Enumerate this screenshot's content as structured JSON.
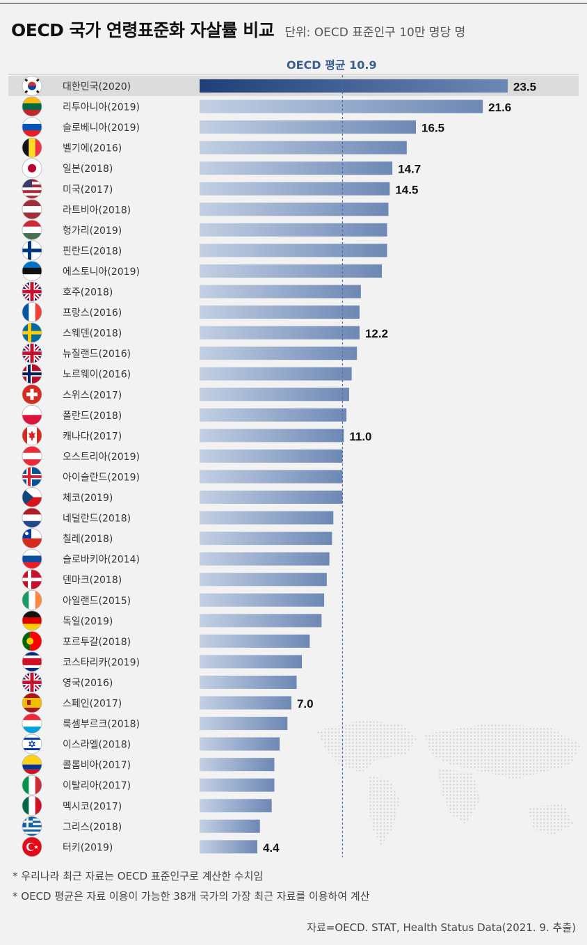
{
  "title": "OECD 국가 연령표준화 자살률 비교",
  "unit": "단위: OECD 표준인구 10만 명당 명",
  "average_label": "OECD 평균 10.9",
  "notes": [
    "* 우리나라 최근 자료는 OECD 표준인구로 계산한 수치임",
    "* OECD 평균은 자료 이용이 가능한 38개 국가의 가장 최근 자료를 이용하여 계산"
  ],
  "source": "자료=OECD. STAT, Health Status Data(2021. 9. 추출)",
  "colors": {
    "bar_light": "#c3d0e4",
    "bar_dark": "#6d88b5",
    "highlight_dark": "#1e3f78",
    "highlight_row": "#dcdcdc",
    "average_line": "#4a6fa5"
  },
  "chart_data": {
    "type": "bar",
    "orientation": "horizontal",
    "average": 10.9,
    "xlim": [
      0,
      23.5
    ],
    "grid": false,
    "categories": [
      "대한민국(2020)",
      "리투아니아(2019)",
      "슬로베니아(2019)",
      "벨기에(2016)",
      "일본(2018)",
      "미국(2017)",
      "라트비아(2018)",
      "헝가리(2019)",
      "핀란드(2018)",
      "에스토니아(2019)",
      "호주(2018)",
      "프랑스(2016)",
      "스웨덴(2018)",
      "뉴질랜드(2016)",
      "노르웨이(2016)",
      "스위스(2017)",
      "폴란드(2018)",
      "캐나다(2017)",
      "오스트리아(2019)",
      "아이슬란드(2019)",
      "체코(2019)",
      "네덜란드(2018)",
      "칠레(2018)",
      "슬로바키아(2014)",
      "덴마크(2018)",
      "아일랜드(2015)",
      "독일(2019)",
      "포르투갈(2018)",
      "코스타리카(2019)",
      "영국(2016)",
      "스페인(2017)",
      "룩셈부르크(2018)",
      "이스라엘(2018)",
      "콜롬비아(2017)",
      "이탈리아(2017)",
      "멕시코(2017)",
      "그리스(2018)",
      "터키(2019)"
    ],
    "values": [
      23.5,
      21.6,
      16.5,
      15.8,
      14.7,
      14.5,
      14.4,
      14.3,
      14.3,
      13.9,
      12.3,
      12.2,
      12.2,
      12.0,
      11.6,
      11.4,
      11.2,
      11.0,
      10.9,
      10.9,
      10.9,
      10.2,
      10.1,
      9.9,
      9.7,
      9.5,
      9.3,
      8.4,
      7.8,
      7.4,
      7.0,
      6.7,
      6.1,
      5.7,
      5.7,
      5.5,
      4.6,
      4.4
    ],
    "value_labels": [
      "23.5",
      "21.6",
      "16.5",
      "",
      "14.7",
      "14.5",
      "",
      "",
      "",
      "",
      "",
      "",
      "12.2",
      "",
      "",
      "",
      "",
      "11.0",
      "",
      "",
      "",
      "",
      "",
      "",
      "",
      "",
      "",
      "",
      "",
      "",
      "7.0",
      "",
      "",
      "",
      "",
      "",
      "",
      "4.4"
    ],
    "highlight_index": 0,
    "flags": [
      {
        "name": "south-korea-flag-icon",
        "type": "korea"
      },
      {
        "name": "lithuania-flag-icon",
        "type": "h3",
        "colors": [
          "#fdb913",
          "#006a44",
          "#c1272d"
        ]
      },
      {
        "name": "slovenia-flag-icon",
        "type": "h3",
        "colors": [
          "#ffffff",
          "#0057b8",
          "#ed1c24"
        ]
      },
      {
        "name": "belgium-flag-icon",
        "type": "v3",
        "colors": [
          "#111111",
          "#fdda24",
          "#ef3340"
        ]
      },
      {
        "name": "japan-flag-icon",
        "type": "japan"
      },
      {
        "name": "usa-flag-icon",
        "type": "usa"
      },
      {
        "name": "latvia-flag-icon",
        "type": "h3",
        "colors": [
          "#9e3039",
          "#ffffff",
          "#9e3039"
        ]
      },
      {
        "name": "hungary-flag-icon",
        "type": "h3",
        "colors": [
          "#ce2939",
          "#ffffff",
          "#477050"
        ]
      },
      {
        "name": "finland-flag-icon",
        "type": "nordic",
        "colors": [
          "#ffffff",
          "#003580"
        ]
      },
      {
        "name": "estonia-flag-icon",
        "type": "h3",
        "colors": [
          "#0072ce",
          "#111111",
          "#ffffff"
        ]
      },
      {
        "name": "australia-flag-icon",
        "type": "uk",
        "colors": [
          "#012169",
          "#ffffff",
          "#c8102e"
        ]
      },
      {
        "name": "france-flag-icon",
        "type": "v3",
        "colors": [
          "#0055a4",
          "#ffffff",
          "#ef4135"
        ]
      },
      {
        "name": "sweden-flag-icon",
        "type": "nordic",
        "colors": [
          "#006aa7",
          "#fecc00"
        ]
      },
      {
        "name": "new-zealand-flag-icon",
        "type": "uk",
        "colors": [
          "#012169",
          "#ffffff",
          "#c8102e"
        ]
      },
      {
        "name": "norway-flag-icon",
        "type": "nordic2",
        "colors": [
          "#ba0c2f",
          "#ffffff",
          "#00205b"
        ]
      },
      {
        "name": "switzerland-flag-icon",
        "type": "swiss"
      },
      {
        "name": "poland-flag-icon",
        "type": "h2",
        "colors": [
          "#ffffff",
          "#dc143c"
        ]
      },
      {
        "name": "canada-flag-icon",
        "type": "canada"
      },
      {
        "name": "austria-flag-icon",
        "type": "h3",
        "colors": [
          "#ed2939",
          "#ffffff",
          "#ed2939"
        ]
      },
      {
        "name": "iceland-flag-icon",
        "type": "nordic2",
        "colors": [
          "#02529c",
          "#ffffff",
          "#dc1e35"
        ]
      },
      {
        "name": "czech-flag-icon",
        "type": "czech"
      },
      {
        "name": "netherlands-flag-icon",
        "type": "h3",
        "colors": [
          "#ae1c28",
          "#ffffff",
          "#21468b"
        ]
      },
      {
        "name": "chile-flag-icon",
        "type": "chile"
      },
      {
        "name": "slovakia-flag-icon",
        "type": "h3",
        "colors": [
          "#ffffff",
          "#0b4ea2",
          "#ee1c25"
        ]
      },
      {
        "name": "denmark-flag-icon",
        "type": "nordic",
        "colors": [
          "#c8102e",
          "#ffffff"
        ]
      },
      {
        "name": "ireland-flag-icon",
        "type": "v3",
        "colors": [
          "#169b62",
          "#ffffff",
          "#ff883e"
        ]
      },
      {
        "name": "germany-flag-icon",
        "type": "h3",
        "colors": [
          "#111111",
          "#dd0000",
          "#ffce00"
        ]
      },
      {
        "name": "portugal-flag-icon",
        "type": "v2",
        "colors": [
          "#006600",
          "#ff0000"
        ]
      },
      {
        "name": "costa-rica-flag-icon",
        "type": "h5",
        "colors": [
          "#002b7f",
          "#ffffff",
          "#ce1126",
          "#ffffff",
          "#002b7f"
        ]
      },
      {
        "name": "uk-flag-icon",
        "type": "uk",
        "colors": [
          "#012169",
          "#ffffff",
          "#c8102e"
        ]
      },
      {
        "name": "spain-flag-icon",
        "type": "spain"
      },
      {
        "name": "luxembourg-flag-icon",
        "type": "h3",
        "colors": [
          "#ed2939",
          "#ffffff",
          "#00a1de"
        ]
      },
      {
        "name": "israel-flag-icon",
        "type": "israel"
      },
      {
        "name": "colombia-flag-icon",
        "type": "colombia"
      },
      {
        "name": "italy-flag-icon",
        "type": "v3",
        "colors": [
          "#009246",
          "#ffffff",
          "#ce2b37"
        ]
      },
      {
        "name": "mexico-flag-icon",
        "type": "v3",
        "colors": [
          "#006847",
          "#ffffff",
          "#ce1126"
        ]
      },
      {
        "name": "greece-flag-icon",
        "type": "greece"
      },
      {
        "name": "turkey-flag-icon",
        "type": "turkey"
      }
    ]
  }
}
